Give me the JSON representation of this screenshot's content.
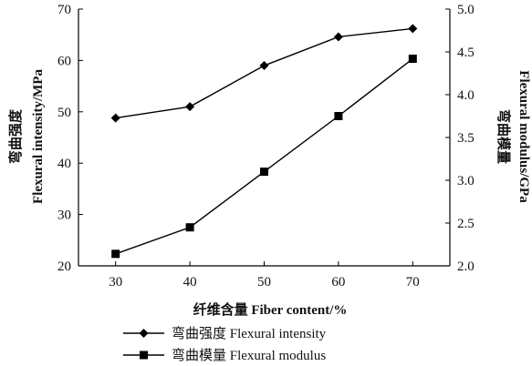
{
  "chart_data": {
    "type": "line",
    "categories": [
      30,
      40,
      50,
      60,
      70
    ],
    "x": [
      30,
      40,
      50,
      60,
      70
    ],
    "xlabel": "纤维含量 Fiber content/%",
    "xlim": [
      25,
      75
    ],
    "y_left": {
      "label_cn": "弯曲强度",
      "label_en": "Flexural intensity/MPa",
      "ylim": [
        20,
        70
      ],
      "ticks": [
        20,
        30,
        40,
        50,
        60,
        70
      ]
    },
    "y_right": {
      "label_cn": "弯曲模量",
      "label_en": "Flexural modulus/GPa",
      "ylim": [
        2.0,
        5.0
      ],
      "ticks": [
        "2.0",
        "2.5",
        "3.0",
        "3.5",
        "4.0",
        "4.5",
        "5.0"
      ]
    },
    "series": [
      {
        "name": "弯曲强度 Flexural intensity",
        "axis": "left",
        "marker": "diamond",
        "values": [
          48.8,
          51.0,
          59.0,
          64.6,
          66.2
        ]
      },
      {
        "name": "弯曲模量 Flexural modulus",
        "axis": "right",
        "marker": "square",
        "values": [
          2.14,
          2.45,
          3.1,
          3.75,
          4.42
        ]
      }
    ],
    "grid": false,
    "legend_position": "bottom-left"
  },
  "colors": {
    "line": "#000000",
    "background": "#ffffff"
  }
}
